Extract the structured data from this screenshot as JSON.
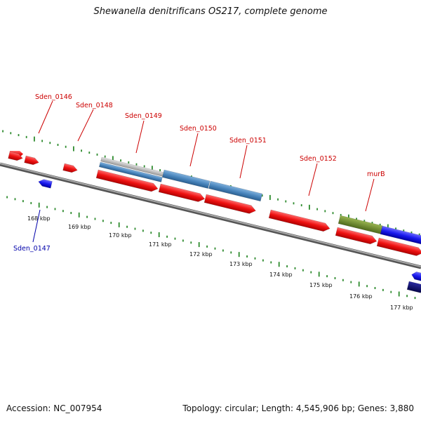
{
  "title": "Shewanella denitrificans OS217, complete genome",
  "footer": {
    "accession": "Accession: NC_007954",
    "topology": "Topology: circular; Length: 4,545,906 bp; Genes: 3,880"
  },
  "colors": {
    "forward_gene": "#ee1111",
    "reverse_gene": "#1a1aee",
    "label_forward": "#cc0000",
    "label_reverse": "#0000aa",
    "cds_blue": "#4a86bd",
    "cds_grey": "#b8b8b8",
    "cds_olive": "#6e8b2e",
    "cds_navy": "#0a0a6e",
    "tick_green": "#2e8b2e",
    "backbone": "#808080"
  },
  "scale_labels": [
    "168 kbp",
    "169 kbp",
    "170 kbp",
    "171 kbp",
    "172 kbp",
    "173 kbp",
    "174 kbp",
    "175 kbp",
    "176 kbp",
    "177 kbp"
  ],
  "gene_labels": [
    {
      "text": "Sden_0146",
      "strand": "forward"
    },
    {
      "text": "Sden_0148",
      "strand": "forward"
    },
    {
      "text": "Sden_0149",
      "strand": "forward"
    },
    {
      "text": "Sden_0150",
      "strand": "forward"
    },
    {
      "text": "Sden_0151",
      "strand": "forward"
    },
    {
      "text": "Sden_0152",
      "strand": "forward"
    },
    {
      "text": "murB",
      "strand": "forward"
    },
    {
      "text": "Sden_0147",
      "strand": "reverse"
    }
  ]
}
